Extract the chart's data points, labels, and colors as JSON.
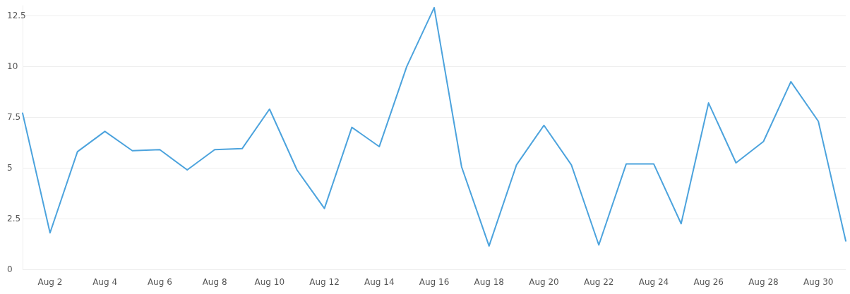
{
  "chart_data": {
    "type": "line",
    "categories": [
      null,
      "Aug 2",
      null,
      "Aug 4",
      null,
      "Aug 6",
      null,
      "Aug 8",
      null,
      "Aug 10",
      null,
      "Aug 12",
      null,
      "Aug 14",
      null,
      "Aug 16",
      null,
      "Aug 18",
      null,
      "Aug 20",
      null,
      "Aug 22",
      null,
      "Aug 24",
      null,
      "Aug 26",
      null,
      "Aug 28",
      null,
      "Aug 30",
      null
    ],
    "series": [
      {
        "color": "#4ca3dd",
        "values": [
          7.7,
          1.8,
          5.8,
          6.8,
          5.85,
          5.9,
          4.9,
          5.9,
          5.95,
          7.9,
          4.9,
          3.0,
          7.0,
          6.05,
          10.0,
          12.9,
          5.05,
          1.15,
          5.15,
          7.1,
          5.15,
          1.2,
          5.2,
          5.2,
          2.25,
          8.2,
          5.25,
          6.3,
          9.25,
          7.3,
          1.4
        ]
      }
    ],
    "ylim": [
      0,
      13
    ],
    "yticks": [
      0,
      2.5,
      5,
      7.5,
      10,
      12.5
    ],
    "grid": "y",
    "marker": "none",
    "line_style": "solid"
  }
}
